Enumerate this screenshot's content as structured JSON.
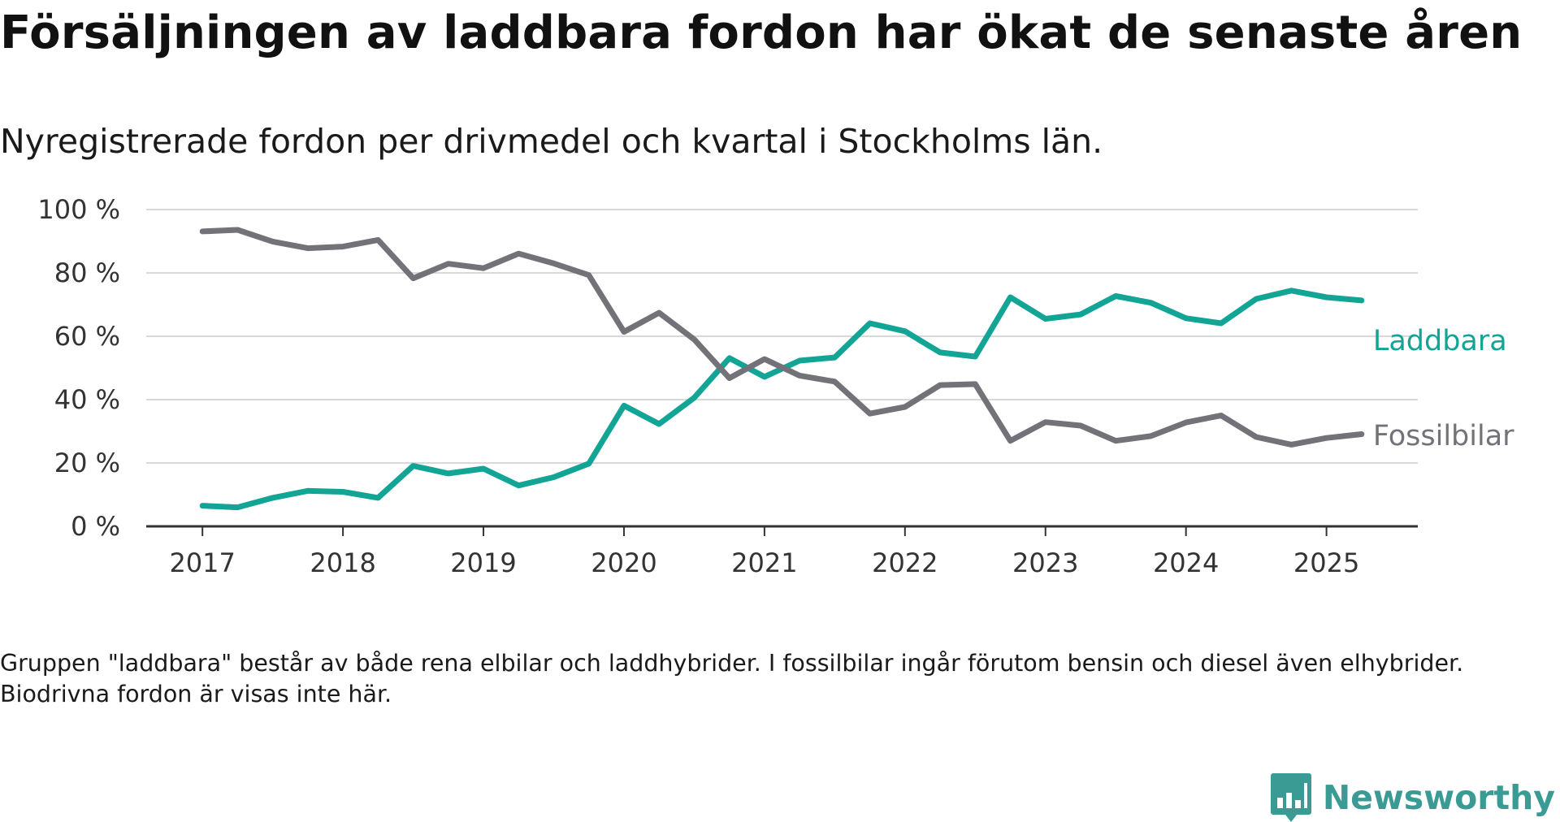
{
  "header": {
    "title": "Försäljningen av laddbara fordon har ökat de senaste åren",
    "subtitle": "Nyregistrerade fordon per drivmedel och kvartal i Stockholms län."
  },
  "footnote": "Gruppen \"laddbara\" består av både rena elbilar och laddhybrider. I fossilbilar ingår förutom bensin och diesel även elhybrider. Biodrivna fordon är visas inte här.",
  "brand": {
    "name": "Newsworthy",
    "icon": "newsworthy-logo-icon",
    "color": "#3a9a94"
  },
  "chart_data": {
    "type": "line",
    "x": [
      2017.0,
      2017.25,
      2017.5,
      2017.75,
      2018.0,
      2018.25,
      2018.5,
      2018.75,
      2019.0,
      2019.25,
      2019.5,
      2019.75,
      2020.0,
      2020.25,
      2020.5,
      2020.75,
      2021.0,
      2021.25,
      2021.5,
      2021.75,
      2022.0,
      2022.25,
      2022.5,
      2022.75,
      2023.0,
      2023.25,
      2023.5,
      2023.75,
      2024.0,
      2024.25,
      2024.5,
      2024.75,
      2025.0,
      2025.25
    ],
    "series": [
      {
        "name": "Laddbara",
        "color": "#12a596",
        "values": [
          6.5,
          6.0,
          9.0,
          11.2,
          10.9,
          9.0,
          19.1,
          16.7,
          18.2,
          12.9,
          15.5,
          19.8,
          38.1,
          32.3,
          40.6,
          53.1,
          47.2,
          52.3,
          53.3,
          64.1,
          61.6,
          54.9,
          53.6,
          72.3,
          65.5,
          66.9,
          72.7,
          70.6,
          65.7,
          64.1,
          71.8,
          74.4,
          72.3,
          71.3
        ]
      },
      {
        "name": "Fossilbilar",
        "color": "#737278",
        "values": [
          93.1,
          93.6,
          89.9,
          87.8,
          88.3,
          90.4,
          78.3,
          82.9,
          81.5,
          86.1,
          83.0,
          79.3,
          61.4,
          67.4,
          59.0,
          46.8,
          52.8,
          47.6,
          45.7,
          35.6,
          37.7,
          44.6,
          44.9,
          27.0,
          32.9,
          31.8,
          27.0,
          28.5,
          32.8,
          35.0,
          28.2,
          25.8,
          27.9,
          29.1
        ]
      }
    ],
    "y_ticks": [
      "0 %",
      "20 %",
      "40 %",
      "60 %",
      "80 %",
      "100 %"
    ],
    "x_ticks": [
      "2017",
      "2018",
      "2019",
      "2020",
      "2021",
      "2022",
      "2023",
      "2024",
      "2025"
    ],
    "ylim": [
      0,
      100
    ],
    "xlim": [
      2016.6,
      2025.65
    ],
    "grid": "horizontal",
    "legend": "direct labels at line ends",
    "xlabel": "",
    "ylabel": ""
  }
}
